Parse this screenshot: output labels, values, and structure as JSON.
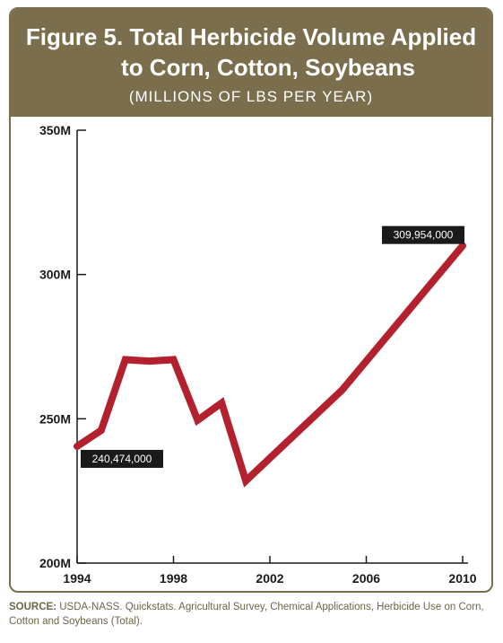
{
  "header": {
    "title_line1": "Figure 5. Total Herbicide Volume Applied",
    "title_line2": "to Corn, Cotton, Soybeans",
    "subtitle": "(MILLIONS OF LBS PER YEAR)"
  },
  "colors": {
    "header_bg": "#7a6e4d",
    "line": "#b3202e",
    "callout_bg": "#1a1a1a",
    "source_text": "#6e6548"
  },
  "chart_data": {
    "type": "line",
    "title": "Figure 5. Total Herbicide Volume Applied to Corn, Cotton, Soybeans",
    "subtitle": "(MILLIONS OF LBS PER YEAR)",
    "x": [
      1994,
      1995,
      1996,
      1997,
      1998,
      1999,
      2000,
      2001,
      2005,
      2010
    ],
    "series": [
      {
        "values": [
          240.474,
          246,
          270.5,
          270,
          270.5,
          249.5,
          255.5,
          228.5,
          260,
          309.954
        ]
      }
    ],
    "xlim": [
      1994,
      2010
    ],
    "ylim": [
      200,
      350
    ],
    "x_ticks": [
      "1994",
      "1998",
      "2002",
      "2006",
      "2010"
    ],
    "y_ticks": [
      "350M",
      "300M",
      "250M",
      "200M"
    ],
    "annotations": [
      {
        "label": "240,474,000",
        "x": 1994,
        "y": 240.474
      },
      {
        "label": "309,954,000",
        "x": 2010,
        "y": 309.954
      }
    ],
    "grid": false,
    "legend": "none"
  },
  "source": {
    "label": "SOURCE:",
    "text": "USDA-NASS. Quickstats. Agricultural Survey, Chemical Applications, Herbicide Use on Corn, Cotton and Soybeans (Total)."
  }
}
